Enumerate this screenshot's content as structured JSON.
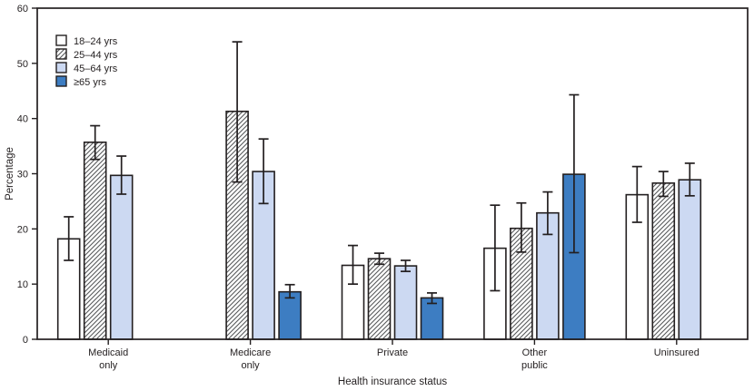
{
  "chart_data": {
    "type": "bar",
    "title": "",
    "xlabel": "Health insurance status",
    "ylabel": "Percentage",
    "ylim": [
      0,
      60
    ],
    "yticks": [
      0,
      10,
      20,
      30,
      40,
      50,
      60
    ],
    "grid": false,
    "legend_position": "top-left-inside",
    "categories": [
      [
        "Medicaid",
        "only"
      ],
      [
        "Medicare",
        "only"
      ],
      [
        "Private"
      ],
      [
        "Other",
        "public"
      ],
      [
        "Uninsured"
      ]
    ],
    "series": [
      {
        "name": "18–24 yrs",
        "style": "white",
        "values": [
          18.2,
          null,
          13.4,
          16.5,
          26.2
        ],
        "ci_low": [
          14.3,
          null,
          10.0,
          8.8,
          21.2
        ],
        "ci_high": [
          22.2,
          null,
          17.0,
          24.3,
          31.3
        ]
      },
      {
        "name": "25–44 yrs",
        "style": "hatch",
        "values": [
          35.7,
          41.3,
          14.6,
          20.1,
          28.3
        ],
        "ci_low": [
          32.6,
          28.5,
          13.6,
          15.8,
          25.9
        ],
        "ci_high": [
          38.7,
          53.9,
          15.6,
          24.7,
          30.4
        ]
      },
      {
        "name": "45–64 yrs",
        "style": "lightblue",
        "values": [
          29.7,
          30.4,
          13.3,
          22.9,
          28.9
        ],
        "ci_low": [
          26.3,
          24.6,
          12.3,
          19.0,
          26.0
        ],
        "ci_high": [
          33.2,
          36.3,
          14.3,
          26.7,
          31.9
        ]
      },
      {
        "name": "≥65 yrs",
        "style": "darkblue",
        "values": [
          null,
          8.6,
          7.5,
          29.9,
          null
        ],
        "ci_low": [
          null,
          7.5,
          6.5,
          15.7,
          null
        ],
        "ci_high": [
          null,
          9.9,
          8.4,
          44.3,
          null
        ]
      }
    ],
    "colors": {
      "white": "#ffffff",
      "hatch_line": "#58595b",
      "lightblue": "#ccd9f2",
      "darkblue": "#3d7dc2",
      "axis": "#231f20"
    }
  }
}
